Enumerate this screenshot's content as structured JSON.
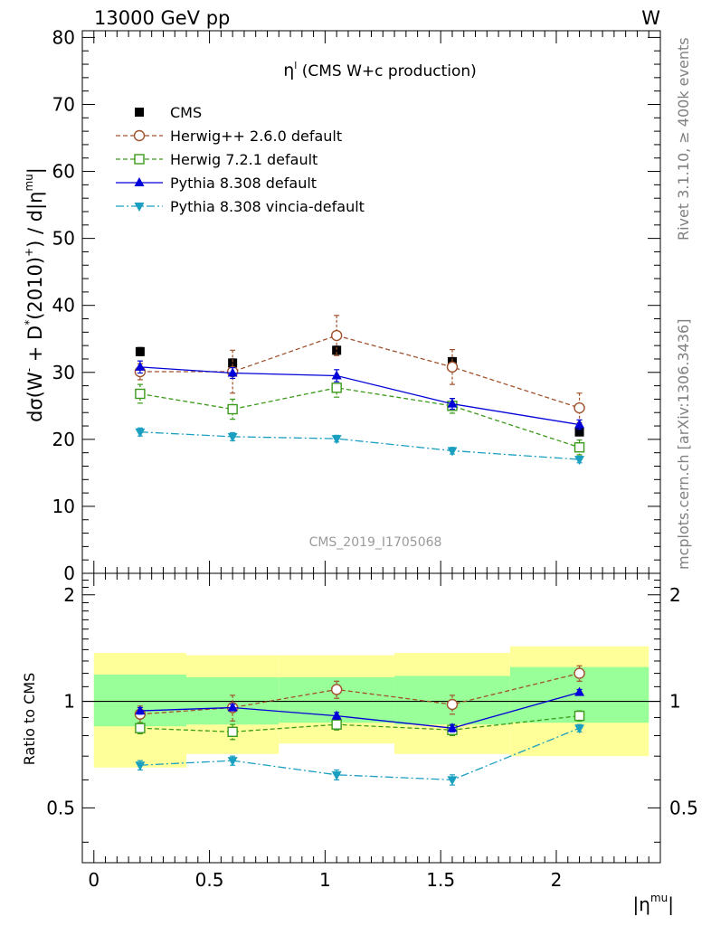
{
  "header": {
    "left": "13000 GeV pp",
    "right": "W"
  },
  "side_text": {
    "top": "Rivet 3.1.10, ≥ 400k events",
    "bottom": "mcplots.cern.ch [arXiv:1306.3436]"
  },
  "colors": {
    "cms": "#000000",
    "herwigpp": "#a0522d",
    "herwig7": "#3a9a1a",
    "pythia": "#0000d8",
    "vincia": "#1a9fc0",
    "band_inner": "#99ff99",
    "band_outer": "#ffff99"
  },
  "chart_data": [
    {
      "type": "line",
      "title_sym": "η",
      "title_sup": "l",
      "title_rest": " (CMS W+c production)",
      "watermark": "CMS_2019_I1705068",
      "ylabel": {
        "a": "dσ(W",
        "b": " + D",
        "c": "(2010)",
        "d": ") / d|η",
        "e": "|",
        "sup_minus": "-",
        "sup_star": "*",
        "sup_plus": "+",
        "sup_mu": "mu"
      },
      "xlim": [
        -0.05,
        2.45
      ],
      "ylim": [
        0,
        81
      ],
      "yticks": [
        0,
        10,
        20,
        30,
        40,
        50,
        60,
        70,
        80
      ],
      "bins": [
        [
          0,
          0.4
        ],
        [
          0.4,
          0.8
        ],
        [
          0.8,
          1.3
        ],
        [
          1.3,
          1.8
        ],
        [
          1.8,
          2.4
        ]
      ],
      "x": [
        0.2,
        0.6,
        1.05,
        1.55,
        2.1
      ],
      "series": [
        {
          "name": "CMS",
          "key": "cms",
          "marker": "square-filled",
          "line": "none",
          "values": [
            33.1,
            31.4,
            33.3,
            31.6,
            21.1
          ],
          "err": [
            0.6,
            0.6,
            0.6,
            0.6,
            0.5
          ]
        },
        {
          "name": "Herwig++ 2.6.0 default",
          "key": "herwigpp",
          "marker": "circle-open",
          "line": "dashed",
          "values": [
            30.1,
            30.1,
            35.5,
            30.8,
            24.7
          ],
          "err": [
            1.2,
            3.2,
            3.0,
            2.6,
            2.2
          ]
        },
        {
          "name": "Herwig 7.2.1 default",
          "key": "herwig7",
          "marker": "square-open",
          "line": "dashed",
          "values": [
            26.8,
            24.5,
            27.7,
            25.0,
            18.8
          ],
          "err": [
            1.4,
            1.5,
            1.4,
            1.1,
            1.1
          ]
        },
        {
          "name": "Pythia 8.308 default",
          "key": "pythia",
          "marker": "triangle-up",
          "line": "solid",
          "values": [
            30.8,
            29.9,
            29.5,
            25.3,
            22.2
          ],
          "err": [
            0.9,
            0.8,
            0.9,
            0.8,
            0.7
          ]
        },
        {
          "name": "Pythia 8.308 vincia-default",
          "key": "vincia",
          "marker": "triangle-down",
          "line": "dashdot",
          "values": [
            21.1,
            20.4,
            20.1,
            18.3,
            17.0
          ],
          "err": [
            0.6,
            0.6,
            0.5,
            0.5,
            0.5
          ]
        }
      ]
    },
    {
      "type": "line",
      "ylabel": "Ratio to CMS",
      "xlabel": {
        "a": "|η",
        "sup_mu": "mu",
        "b": "|"
      },
      "xlim": [
        -0.05,
        2.45
      ],
      "ylim": [
        0.35,
        2.3
      ],
      "yticks": [
        0.5,
        1,
        2
      ],
      "xticks": [
        0,
        0.5,
        1,
        1.5,
        2
      ],
      "bins": [
        [
          0,
          0.4
        ],
        [
          0.4,
          0.8
        ],
        [
          0.8,
          1.3
        ],
        [
          1.3,
          1.8
        ],
        [
          1.8,
          2.4
        ]
      ],
      "band_inner": [
        [
          0.85,
          1.19
        ],
        [
          0.86,
          1.17
        ],
        [
          0.87,
          1.17
        ],
        [
          0.86,
          1.18
        ],
        [
          0.87,
          1.25
        ]
      ],
      "band_outer": [
        [
          0.65,
          1.37
        ],
        [
          0.71,
          1.35
        ],
        [
          0.76,
          1.35
        ],
        [
          0.71,
          1.37
        ],
        [
          0.7,
          1.43
        ]
      ],
      "x": [
        0.2,
        0.6,
        1.05,
        1.55,
        2.1
      ],
      "series": [
        {
          "name": "Herwig++ 2.6.0 default",
          "key": "herwigpp",
          "marker": "circle-open",
          "line": "dashed",
          "values": [
            0.92,
            0.96,
            1.08,
            0.98,
            1.2
          ],
          "err": [
            0.05,
            0.08,
            0.06,
            0.06,
            0.06
          ]
        },
        {
          "name": "Herwig 7.2.1 default",
          "key": "herwig7",
          "marker": "square-open",
          "line": "dashed",
          "values": [
            0.84,
            0.82,
            0.86,
            0.83,
            0.91
          ],
          "err": [
            0.03,
            0.04,
            0.03,
            0.03,
            0.03
          ]
        },
        {
          "name": "Pythia 8.308 default",
          "key": "pythia",
          "marker": "triangle-up",
          "line": "solid",
          "values": [
            0.94,
            0.96,
            0.91,
            0.84,
            1.06
          ],
          "err": [
            0.02,
            0.02,
            0.02,
            0.02,
            0.02
          ]
        },
        {
          "name": "Pythia 8.308 vincia-default",
          "key": "vincia",
          "marker": "triangle-down",
          "line": "dashdot",
          "values": [
            0.66,
            0.68,
            0.62,
            0.6,
            0.84
          ],
          "err": [
            0.02,
            0.02,
            0.02,
            0.02,
            0.02
          ]
        }
      ]
    }
  ]
}
